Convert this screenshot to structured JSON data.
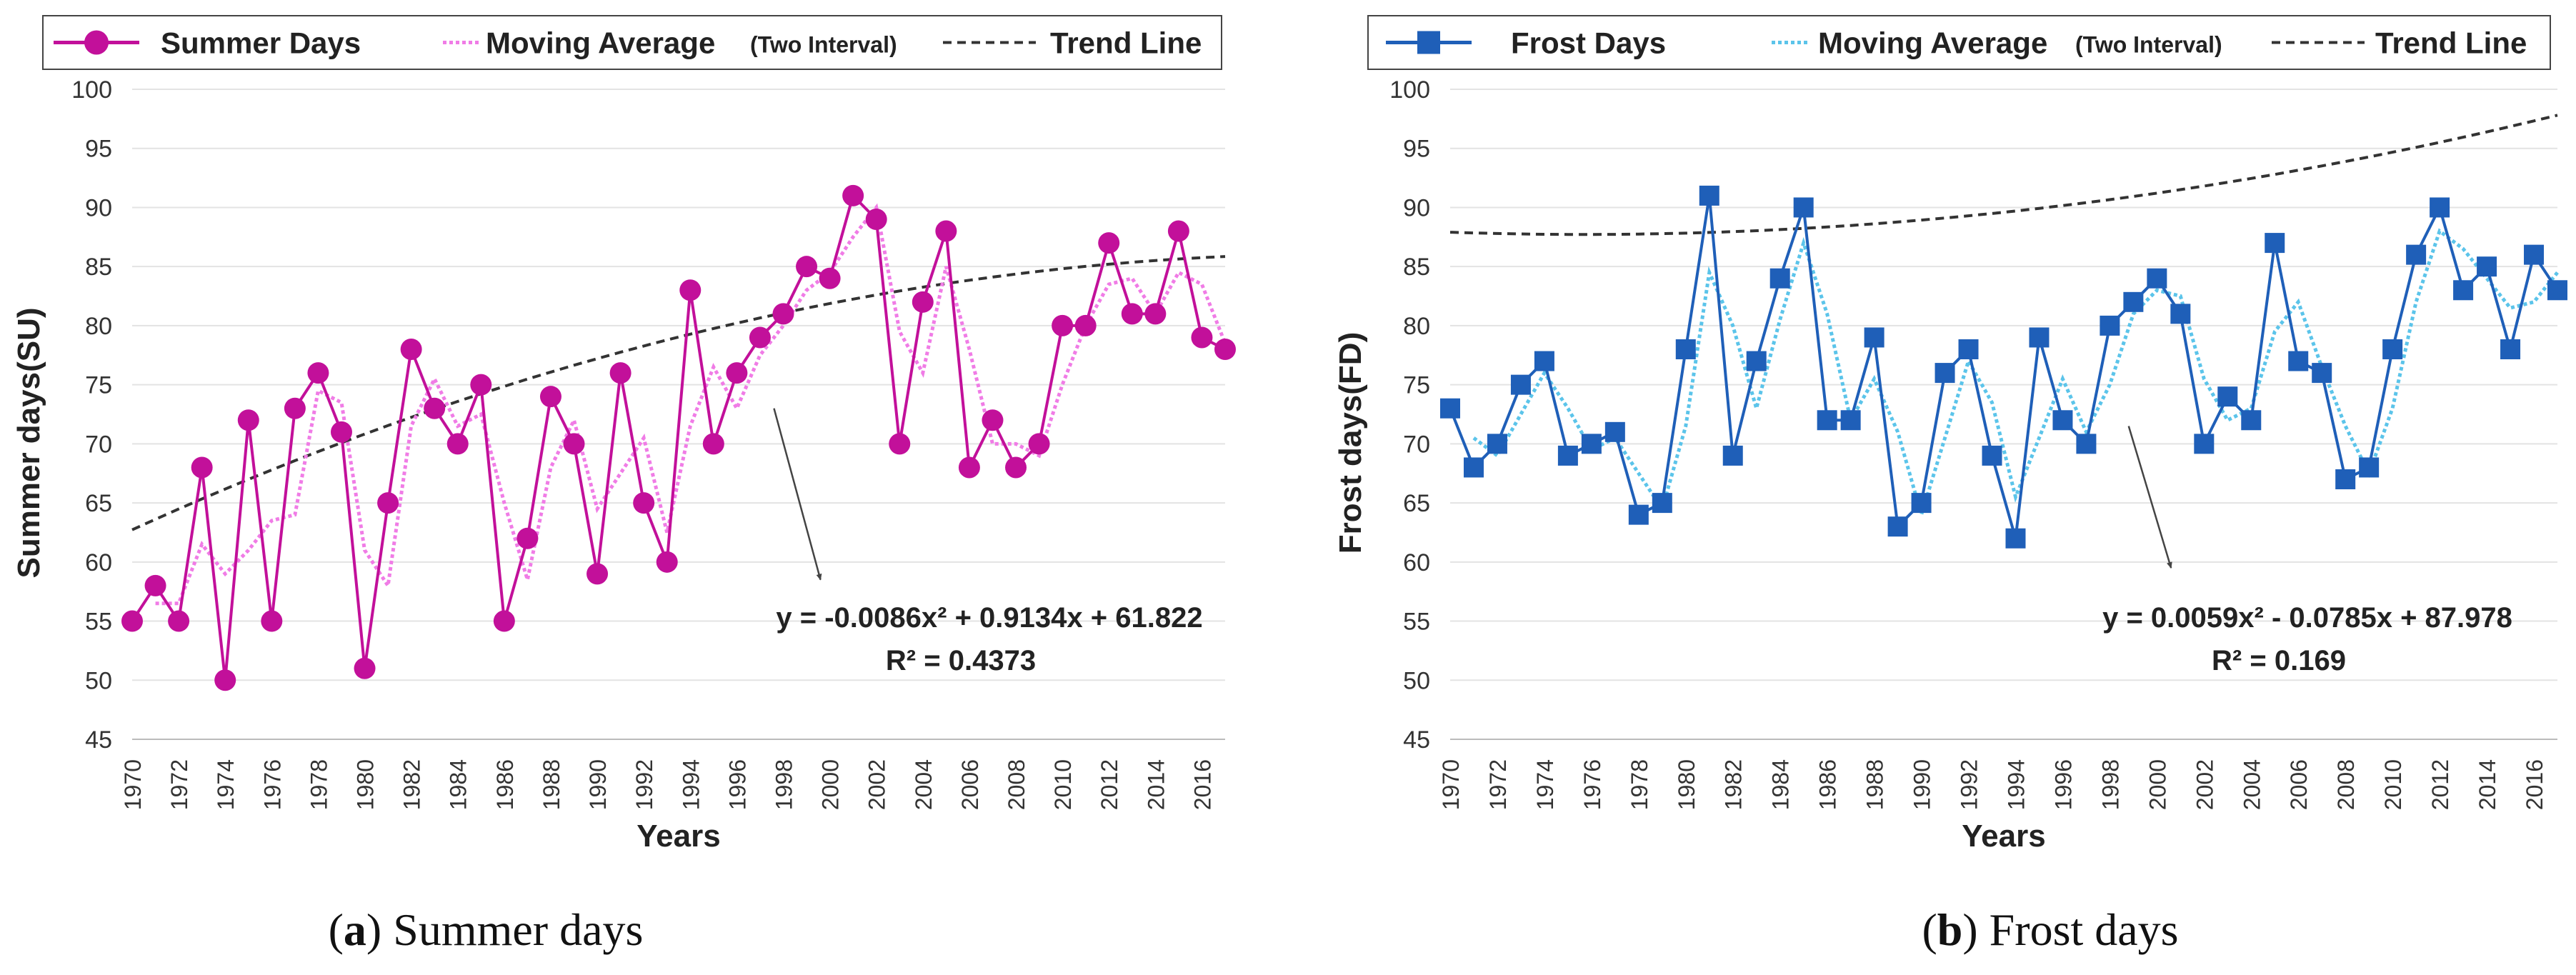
{
  "chart_data": [
    {
      "type": "line",
      "panel": "a",
      "caption": {
        "letter": "a",
        "text": "Summer days"
      },
      "legend": {
        "placement": "top",
        "entries": [
          {
            "label": "Summer Days",
            "kind": "series"
          },
          {
            "label": "Moving Average",
            "suffix": "(Two Interval)",
            "kind": "moving-average"
          },
          {
            "label": "Trend Line",
            "kind": "trend"
          }
        ]
      },
      "xlabel": "Years",
      "ylabel": "Summer days(SU)",
      "ylim": [
        45,
        100
      ],
      "ytick_step": 5,
      "ytick_labels": [
        "45",
        "50",
        "55",
        "60",
        "65",
        "70",
        "75",
        "80",
        "85",
        "90",
        "95",
        "100"
      ],
      "xlim": [
        1970,
        2017
      ],
      "xtick_labels": [
        "1970",
        "1972",
        "1974",
        "1976",
        "1978",
        "1980",
        "1982",
        "1984",
        "1986",
        "1988",
        "1990",
        "1992",
        "1994",
        "1996",
        "1998",
        "2000",
        "2002",
        "2004",
        "2006",
        "2008",
        "2010",
        "2012",
        "2014",
        "2016"
      ],
      "grid": true,
      "series": [
        {
          "name": "Summer Days",
          "marker": "circle",
          "color": "#C2109A",
          "x": [
            1970,
            1971,
            1972,
            1973,
            1974,
            1975,
            1976,
            1977,
            1978,
            1979,
            1980,
            1981,
            1982,
            1983,
            1984,
            1985,
            1986,
            1987,
            1988,
            1989,
            1990,
            1991,
            1992,
            1993,
            1994,
            1995,
            1996,
            1997,
            1998,
            1999,
            2000,
            2001,
            2002,
            2003,
            2004,
            2005,
            2006,
            2007,
            2008,
            2009,
            2010,
            2011,
            2012,
            2013,
            2014,
            2015,
            2016,
            2017
          ],
          "values": [
            55,
            58,
            55,
            68,
            50,
            72,
            55,
            73,
            76,
            71,
            51,
            65,
            78,
            73,
            70,
            75,
            55,
            62,
            74,
            70,
            59,
            76,
            65,
            60,
            83,
            70,
            76,
            79,
            81,
            85,
            84,
            91,
            89,
            70,
            82,
            88,
            68,
            72,
            68,
            70,
            80,
            80,
            87,
            81,
            81,
            88,
            79,
            78
          ]
        }
      ],
      "moving_average": {
        "name": "Moving Average",
        "period": 2,
        "color": "#F07CE6"
      },
      "trend": {
        "type": "polynomial",
        "coefficients": [
          -0.0086,
          0.9134,
          61.822
        ],
        "equation": "y = -0.0086x² + 0.9134x + 61.822",
        "r2": "R² = 0.4373",
        "color": "#333333"
      },
      "annotation_arrow": {
        "from": [
          1997.6,
          73
        ],
        "to": [
          1999.6,
          58.5
        ],
        "color": "#444444"
      }
    },
    {
      "type": "line",
      "panel": "b",
      "caption": {
        "letter": "b",
        "text": "Frost days"
      },
      "legend": {
        "placement": "top",
        "entries": [
          {
            "label": "Frost Days",
            "kind": "series"
          },
          {
            "label": "Moving Average",
            "suffix": "(Two Interval)",
            "kind": "moving-average"
          },
          {
            "label": "Trend Line",
            "kind": "trend"
          }
        ]
      },
      "xlabel": "Years",
      "ylabel": "Frost days(FD)",
      "ylim": [
        45,
        100
      ],
      "ytick_step": 5,
      "ytick_labels": [
        "45",
        "50",
        "55",
        "60",
        "65",
        "70",
        "75",
        "80",
        "85",
        "90",
        "95",
        "100"
      ],
      "xlim": [
        1970,
        2017
      ],
      "xtick_labels": [
        "1970",
        "1972",
        "1974",
        "1976",
        "1978",
        "1980",
        "1982",
        "1984",
        "1986",
        "1988",
        "1990",
        "1992",
        "1994",
        "1996",
        "1998",
        "2000",
        "2002",
        "2004",
        "2006",
        "2008",
        "2010",
        "2012",
        "2014",
        "2016"
      ],
      "grid": true,
      "series": [
        {
          "name": "Frost Days",
          "marker": "square",
          "color": "#1F5FB8",
          "x": [
            1970,
            1971,
            1972,
            1973,
            1974,
            1975,
            1976,
            1977,
            1978,
            1979,
            1980,
            1981,
            1982,
            1983,
            1984,
            1985,
            1986,
            1987,
            1988,
            1989,
            1990,
            1991,
            1992,
            1993,
            1994,
            1995,
            1996,
            1997,
            1998,
            1999,
            2000,
            2001,
            2002,
            2003,
            2004,
            2005,
            2006,
            2007,
            2008,
            2009,
            2010,
            2011,
            2012,
            2013,
            2014,
            2015,
            2016,
            2017
          ],
          "values": [
            73,
            68,
            70,
            75,
            77,
            69,
            70,
            71,
            64,
            65,
            78,
            91,
            69,
            77,
            84,
            90,
            72,
            72,
            79,
            63,
            65,
            76,
            78,
            69,
            62,
            79,
            72,
            70,
            80,
            82,
            84,
            81,
            70,
            74,
            72,
            87,
            77,
            76,
            67,
            68,
            78,
            86,
            90,
            83,
            85,
            78,
            86,
            83
          ]
        }
      ],
      "moving_average": {
        "name": "Moving Average",
        "period": 2,
        "color": "#5BC4EA"
      },
      "trend": {
        "type": "polynomial",
        "coefficients": [
          0.0059,
          -0.0785,
          87.978
        ],
        "equation": "y = 0.0059x² - 0.0785x + 87.978",
        "r2": "R² = 0.169",
        "color": "#333333"
      },
      "annotation_arrow": {
        "from": [
          1998.8,
          71.5
        ],
        "to": [
          2000.6,
          59.5
        ],
        "color": "#444444"
      }
    }
  ]
}
